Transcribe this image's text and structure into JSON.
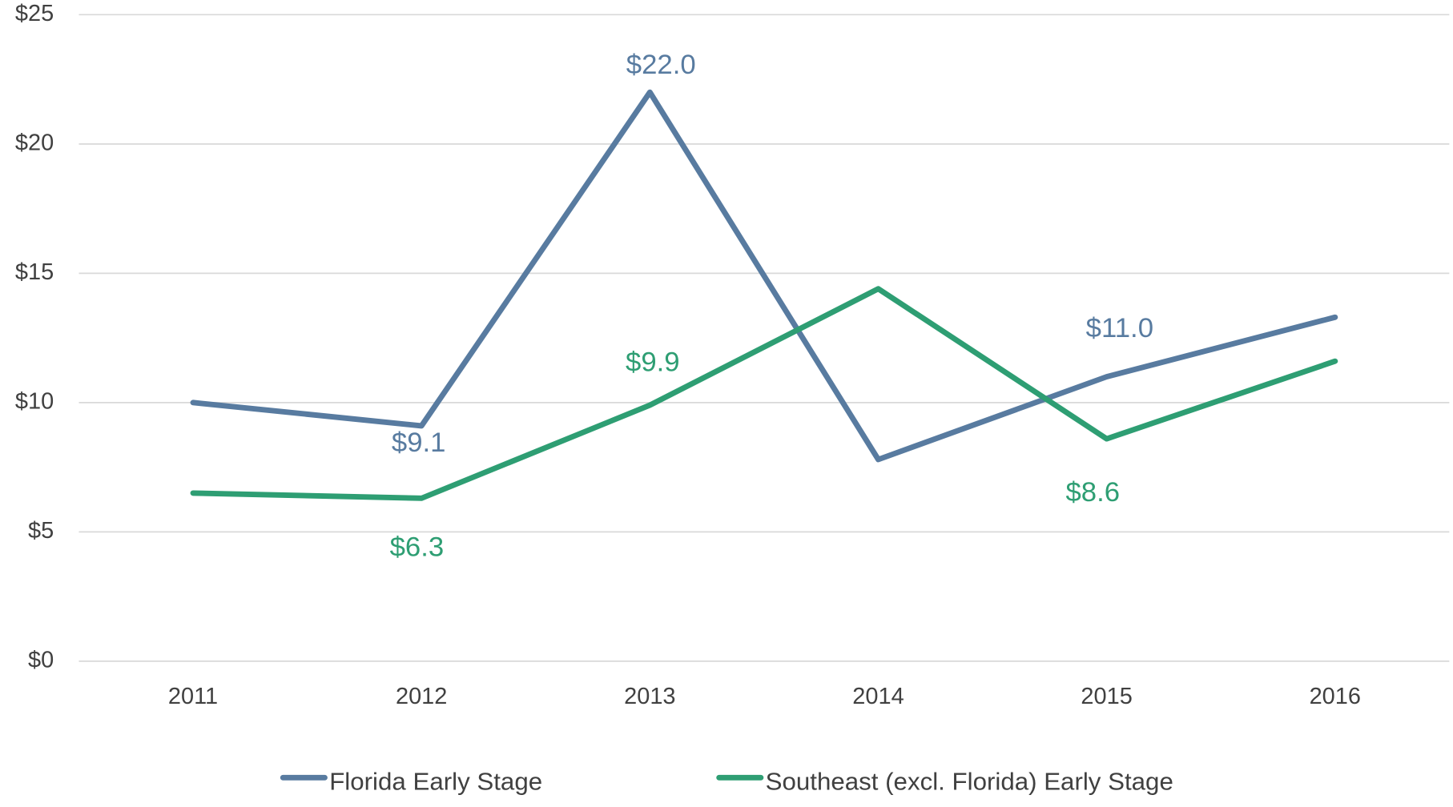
{
  "chart_data": {
    "type": "line",
    "categories": [
      "2011",
      "2012",
      "2013",
      "2014",
      "2015",
      "2016"
    ],
    "series": [
      {
        "name": "Florida Early Stage",
        "color": "#587ba0",
        "values": [
          10.0,
          9.1,
          22.0,
          7.8,
          11.0,
          13.3
        ],
        "value_labels": [
          null,
          "$9.1",
          "$22.0",
          null,
          "$11.0",
          null
        ]
      },
      {
        "name": "Southeast (excl. Florida) Early Stage",
        "color": "#2e9e73",
        "values": [
          6.5,
          6.3,
          9.9,
          14.4,
          8.6,
          11.6
        ],
        "value_labels": [
          null,
          "$6.3",
          "$9.9",
          null,
          "$8.6",
          null
        ]
      }
    ],
    "ylim": [
      0,
      25
    ],
    "yticks": [
      {
        "value": 0,
        "label": "$0"
      },
      {
        "value": 5,
        "label": "$5"
      },
      {
        "value": 10,
        "label": "$10"
      },
      {
        "value": 15,
        "label": "$15"
      },
      {
        "value": 20,
        "label": "$20"
      },
      {
        "value": 25,
        "label": "$25"
      }
    ],
    "grid": true,
    "legend": "bottom"
  }
}
